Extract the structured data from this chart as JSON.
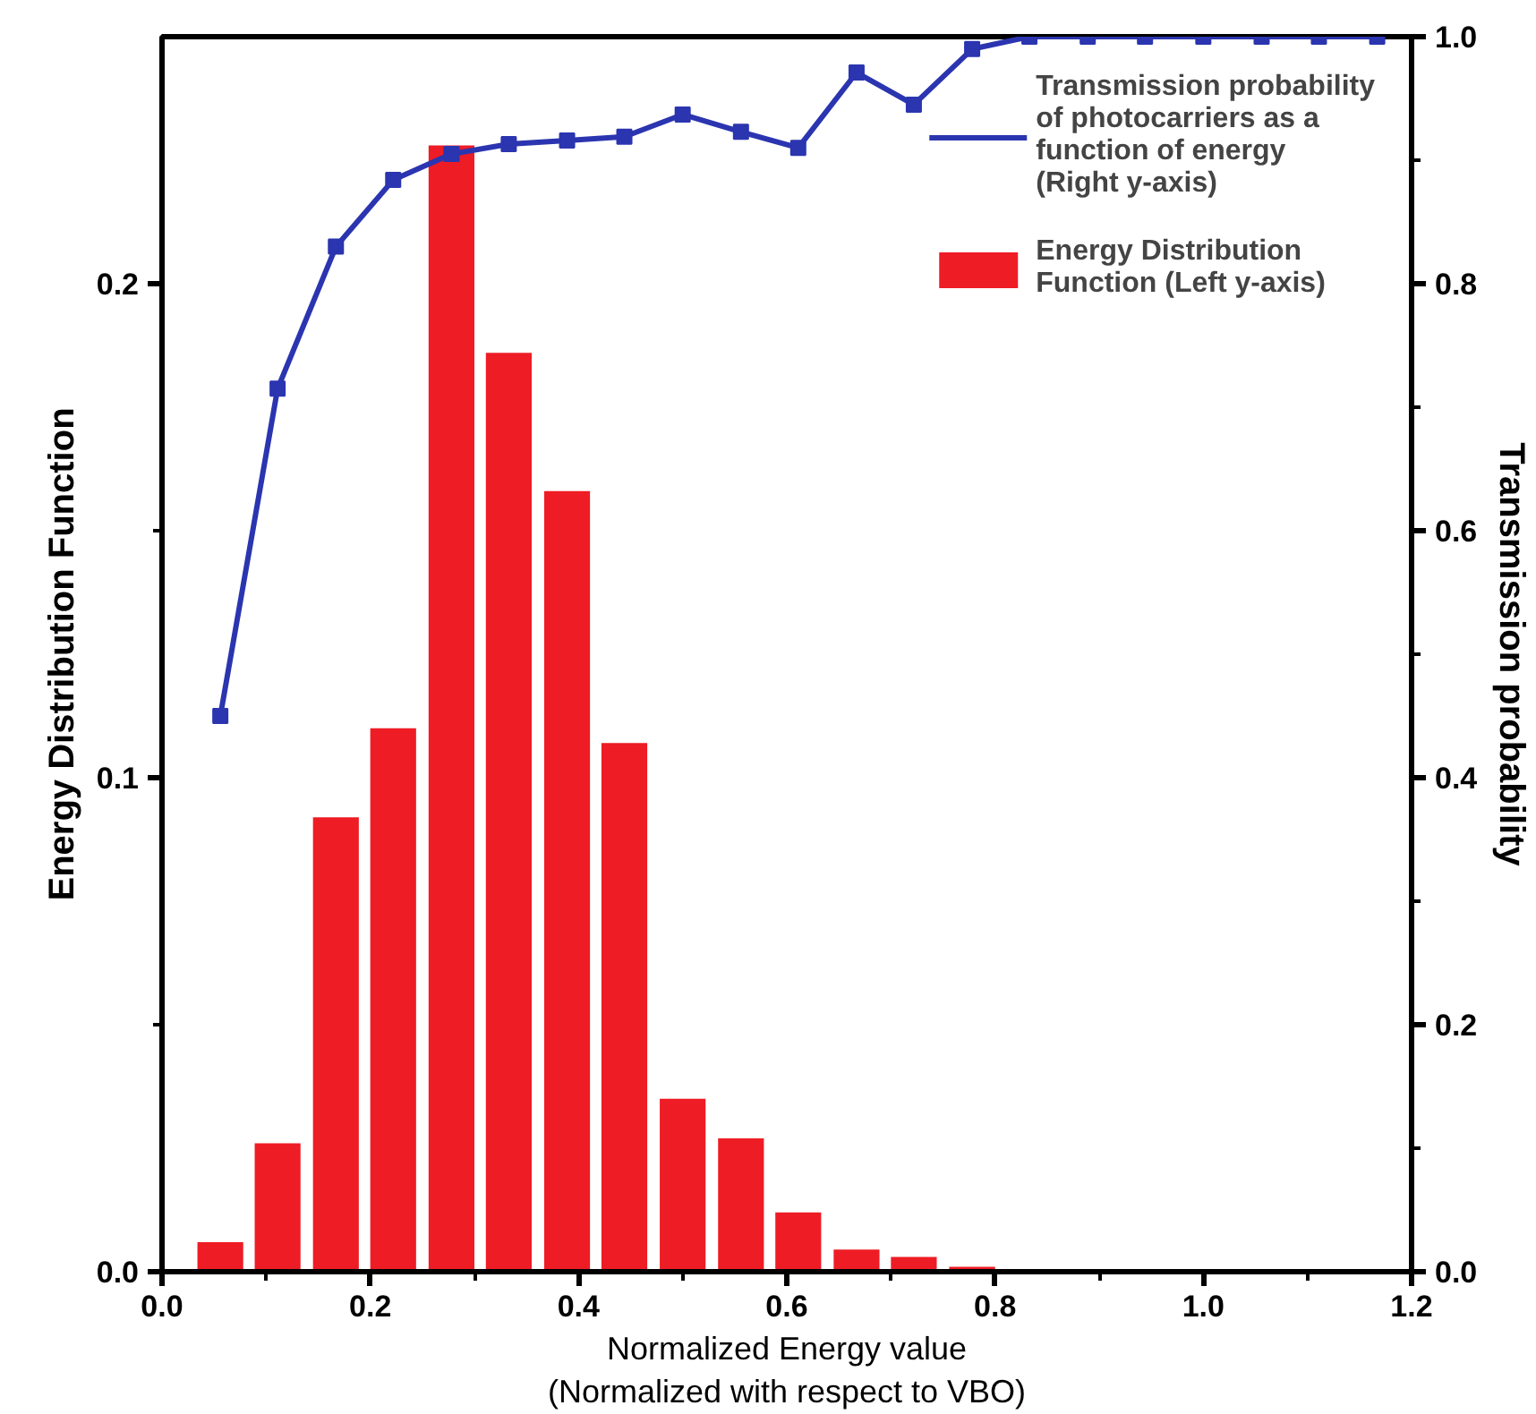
{
  "chart_data": {
    "type": "bar",
    "xlabel": "Normalized Energy value\n(Normalized with respect to VBO)",
    "ylabel": "Energy Distribution Function",
    "y2label": "Transmission probability",
    "x": [
      0.056,
      0.111,
      0.167,
      0.222,
      0.278,
      0.333,
      0.389,
      0.444,
      0.5,
      0.556,
      0.611,
      0.667,
      0.722,
      0.778,
      0.833,
      0.889,
      0.944,
      1.0,
      1.056,
      1.111,
      1.167
    ],
    "series": [
      {
        "name": "Energy Distribution Function (Left y-axis)",
        "color": "#ee1c25",
        "values": [
          0.006,
          0.026,
          0.092,
          0.11,
          0.228,
          0.186,
          0.158,
          0.107,
          0.035,
          0.027,
          0.012,
          0.0045,
          0.003,
          0.001,
          null,
          null,
          null,
          null,
          null,
          null,
          null
        ]
      },
      {
        "name": "Transmission probability of photocarriers as a function of energy (Right y-axis)",
        "color": "#2b35b0",
        "type": "line",
        "axis": "y2",
        "marker": "square",
        "values": [
          0.45,
          0.715,
          0.83,
          0.884,
          0.905,
          0.913,
          0.916,
          0.919,
          0.937,
          0.923,
          0.91,
          0.971,
          0.945,
          0.99,
          1.0,
          1.0,
          1.0,
          1.0,
          1.0,
          1.0,
          1.0
        ]
      }
    ],
    "xlim": [
      0,
      1.2
    ],
    "xticks": [
      {
        "value": 0,
        "label": "0.0"
      },
      {
        "value": 0.2,
        "label": "0.2"
      },
      {
        "value": 0.4,
        "label": "0.4"
      },
      {
        "value": 0.6,
        "label": "0.6"
      },
      {
        "value": 0.8,
        "label": "0.8"
      },
      {
        "value": 1.0,
        "label": "1.0"
      },
      {
        "value": 1.2,
        "label": "1.2"
      }
    ],
    "ylim": [
      0,
      0.25
    ],
    "yticks": [
      {
        "value": 0,
        "label": "0.0"
      },
      0.1,
      0.2
    ],
    "y2lim": [
      0,
      1.0
    ],
    "y2ticks": [
      {
        "value": 0,
        "label": "0.0"
      },
      0.2,
      0.4,
      0.6,
      0.8,
      {
        "value": 1.0,
        "label": "1.0"
      }
    ],
    "grid": false,
    "legend": "top right"
  }
}
